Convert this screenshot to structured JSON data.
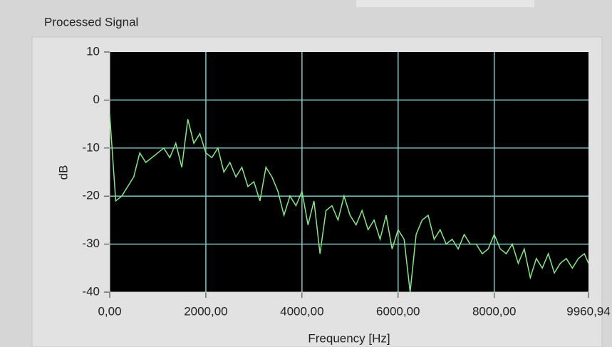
{
  "chart_data": {
    "type": "line",
    "title": "Processed Signal",
    "xlabel": "Frequency [Hz]",
    "ylabel": "dB",
    "x": [
      0,
      125,
      250,
      375,
      500,
      625,
      750,
      875,
      1000,
      1125,
      1250,
      1375,
      1500,
      1625,
      1750,
      1875,
      2000,
      2125,
      2250,
      2375,
      2500,
      2625,
      2750,
      2875,
      3000,
      3125,
      3250,
      3375,
      3500,
      3625,
      3750,
      3875,
      4000,
      4125,
      4250,
      4375,
      4500,
      4625,
      4750,
      4875,
      5000,
      5125,
      5250,
      5375,
      5500,
      5625,
      5750,
      5875,
      6000,
      6125,
      6250,
      6375,
      6500,
      6625,
      6750,
      6875,
      7000,
      7125,
      7250,
      7375,
      7500,
      7625,
      7750,
      7875,
      8000,
      8125,
      8250,
      8375,
      8500,
      8625,
      8750,
      8875,
      9000,
      9125,
      9250,
      9375,
      9500,
      9625,
      9750,
      9875,
      9960.94
    ],
    "values": [
      -3,
      -21,
      -20,
      -18,
      -16,
      -11,
      -13,
      -12,
      -11,
      -10,
      -12,
      -9,
      -14,
      -4,
      -9,
      -7,
      -11,
      -12,
      -10,
      -15,
      -13,
      -16,
      -14,
      -18,
      -17,
      -21,
      -14,
      -16,
      -19,
      -24,
      -20,
      -22,
      -19,
      -26,
      -21,
      -32,
      -23,
      -22,
      -25,
      -20,
      -24,
      -26,
      -23,
      -27,
      -25,
      -29,
      -24,
      -31,
      -27,
      -29,
      -40,
      -28,
      -25,
      -24,
      -29,
      -27,
      -30,
      -29,
      -31,
      -28,
      -30,
      -30,
      -32,
      -31,
      -28,
      -31,
      -32,
      -30,
      -34,
      -31,
      -37,
      -33,
      -35,
      -32,
      -36,
      -34,
      -33,
      -35,
      -33,
      -32,
      -34
    ],
    "color": "#84e884",
    "xlim": [
      0,
      9960.94
    ],
    "xticks": [
      {
        "value": 0,
        "label": "0,00"
      },
      {
        "value": 2000,
        "label": "2000,00"
      },
      {
        "value": 4000,
        "label": "4000,00"
      },
      {
        "value": 6000,
        "label": "6000,00"
      },
      {
        "value": 8000,
        "label": "8000,00"
      },
      {
        "value": 9960.94,
        "label": "9960,94"
      }
    ],
    "ylim": [
      -40,
      10
    ],
    "yticks": [
      10,
      0,
      -10,
      -20,
      -30,
      -40
    ],
    "grid": true
  }
}
